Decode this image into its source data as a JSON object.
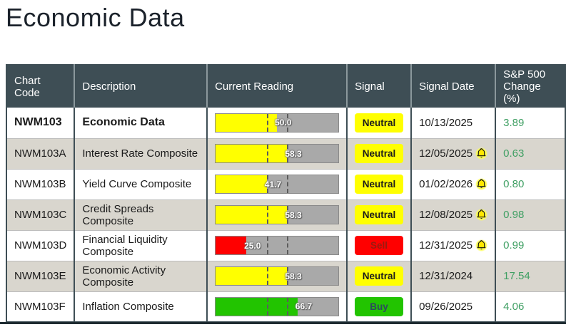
{
  "page": {
    "title": "Economic Data"
  },
  "colors": {
    "header_bg": "#3e4e55",
    "row_alt_bg": "#d9d6ce",
    "bar_track": "#a9a9a9",
    "bar_yellow": "#ffff00",
    "bar_red": "#ff0000",
    "bar_green": "#22c400",
    "signal_neutral_bg": "#ffff00",
    "signal_sell_bg": "#ff0000",
    "signal_buy_bg": "#22c400",
    "change_text": "#3f9f63"
  },
  "table": {
    "headers": [
      "Chart Code",
      "Description",
      "Current Reading",
      "Signal",
      "Signal Date",
      "S&P 500 Change (%)"
    ],
    "thresholds": [
      41.7,
      58.3
    ],
    "reading_scale": [
      0,
      100
    ],
    "rows": [
      {
        "code": "NWM103",
        "description": "Economic Data",
        "emphasis": true,
        "reading": 50.0,
        "reading_label": "50.0",
        "bar_color": "#ffff00",
        "signal": "Neutral",
        "signal_type": "neutral",
        "date": "10/13/2025",
        "alert": false,
        "change": "3.89"
      },
      {
        "code": "NWM103A",
        "description": "Interest Rate Composite",
        "emphasis": false,
        "reading": 58.3,
        "reading_label": "58.3",
        "bar_color": "#ffff00",
        "signal": "Neutral",
        "signal_type": "neutral",
        "date": "12/05/2025",
        "alert": true,
        "change": "0.63"
      },
      {
        "code": "NWM103B",
        "description": "Yield Curve Composite",
        "emphasis": false,
        "reading": 41.7,
        "reading_label": "41.7",
        "bar_color": "#ffff00",
        "signal": "Neutral",
        "signal_type": "neutral",
        "date": "01/02/2026",
        "alert": true,
        "change": "0.80"
      },
      {
        "code": "NWM103C",
        "description": "Credit Spreads Composite",
        "emphasis": false,
        "reading": 58.3,
        "reading_label": "58.3",
        "bar_color": "#ffff00",
        "signal": "Neutral",
        "signal_type": "neutral",
        "date": "12/08/2025",
        "alert": true,
        "change": "0.98"
      },
      {
        "code": "NWM103D",
        "description": "Financial Liquidity Composite",
        "emphasis": false,
        "reading": 25.0,
        "reading_label": "25.0",
        "bar_color": "#ff0000",
        "signal": "Sell",
        "signal_type": "sell",
        "date": "12/31/2025",
        "alert": true,
        "change": "0.99"
      },
      {
        "code": "NWM103E",
        "description": "Economic Activity Composite",
        "emphasis": false,
        "reading": 58.3,
        "reading_label": "58.3",
        "bar_color": "#ffff00",
        "signal": "Neutral",
        "signal_type": "neutral",
        "date": "12/31/2024",
        "alert": false,
        "change": "17.54"
      },
      {
        "code": "NWM103F",
        "description": "Inflation Composite",
        "emphasis": false,
        "reading": 66.7,
        "reading_label": "66.7",
        "bar_color": "#22c400",
        "signal": "Buy",
        "signal_type": "buy",
        "date": "09/26/2025",
        "alert": false,
        "change": "4.06"
      }
    ]
  }
}
